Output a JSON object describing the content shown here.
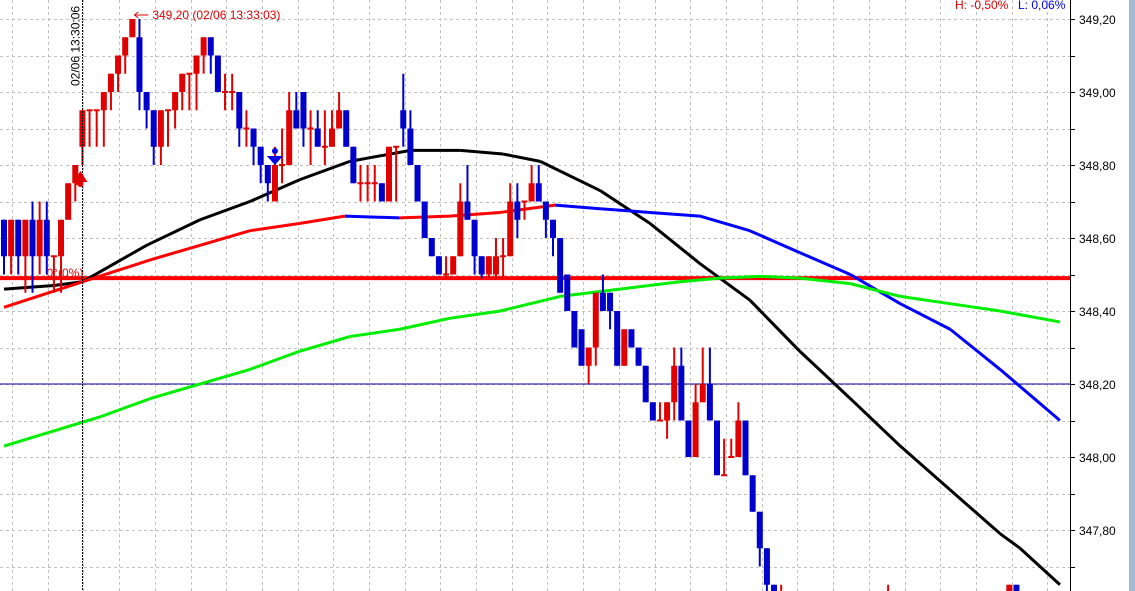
{
  "header": {
    "high_label": "H: -0,50%",
    "low_label": "L: 0,06%",
    "high_color": "#e00000",
    "low_color": "#0000e0"
  },
  "annotations": {
    "max_label": "349,20 (02/06 13:33:03)",
    "crosshair_time": "02/06 13:30:06",
    "zero_label": "0°(0%)",
    "buy_signal_icon": "red-up-arrow-icon",
    "sell_signal_icon": "blue-down-triangle-icon"
  },
  "chart_data": {
    "type": "candlestick",
    "title": "",
    "xlabel": "",
    "ylabel": "",
    "ylim": [
      347.64,
      349.25
    ],
    "grid": true,
    "y_ticks": [
      "349,20",
      "349,00",
      "348,80",
      "348,60",
      "348,40",
      "348,20",
      "348,00",
      "347,80"
    ],
    "y_tick_values": [
      349.2,
      349.0,
      348.8,
      348.6,
      348.4,
      348.2,
      348.0,
      347.8
    ],
    "up_color": "#e00000",
    "down_color": "#0000cc",
    "candles_ohlc": [
      [
        348.65,
        348.65,
        348.5,
        348.55
      ],
      [
        348.55,
        348.65,
        348.5,
        348.65
      ],
      [
        348.65,
        348.65,
        348.5,
        348.55
      ],
      [
        348.55,
        348.65,
        348.45,
        348.65
      ],
      [
        348.65,
        348.7,
        348.45,
        348.55
      ],
      [
        348.55,
        348.7,
        348.5,
        348.65
      ],
      [
        348.65,
        348.7,
        348.5,
        348.55
      ],
      [
        348.55,
        348.55,
        348.45,
        348.55
      ],
      [
        348.55,
        348.65,
        348.45,
        348.65
      ],
      [
        348.65,
        348.75,
        348.65,
        348.75
      ],
      [
        348.75,
        348.8,
        348.7,
        348.8
      ],
      [
        348.85,
        348.95,
        348.8,
        348.95
      ],
      [
        348.95,
        348.95,
        348.85,
        348.95
      ],
      [
        348.95,
        348.95,
        348.85,
        348.95
      ],
      [
        348.95,
        349.0,
        348.85,
        349.0
      ],
      [
        349.0,
        349.05,
        348.95,
        349.05
      ],
      [
        349.05,
        349.1,
        349.0,
        349.1
      ],
      [
        349.1,
        349.15,
        349.05,
        349.15
      ],
      [
        349.15,
        349.2,
        349.15,
        349.2
      ],
      [
        349.15,
        349.2,
        348.95,
        349.0
      ],
      [
        349.0,
        349.0,
        348.9,
        348.95
      ],
      [
        348.95,
        348.95,
        348.8,
        348.85
      ],
      [
        348.85,
        348.95,
        348.8,
        348.95
      ],
      [
        348.95,
        348.95,
        348.85,
        348.95
      ],
      [
        348.95,
        349.0,
        348.9,
        349.0
      ],
      [
        349.0,
        349.05,
        348.95,
        349.05
      ],
      [
        349.05,
        349.05,
        348.95,
        349.05
      ],
      [
        349.05,
        349.1,
        348.95,
        349.1
      ],
      [
        349.1,
        349.15,
        349.05,
        349.15
      ],
      [
        349.15,
        349.15,
        349.05,
        349.1
      ],
      [
        349.1,
        349.1,
        349.0,
        349.0
      ],
      [
        349.0,
        349.05,
        348.95,
        349.0
      ],
      [
        349.0,
        349.05,
        348.95,
        349.0
      ],
      [
        349.0,
        349.0,
        348.85,
        348.9
      ],
      [
        348.9,
        348.95,
        348.85,
        348.9
      ],
      [
        348.9,
        348.9,
        348.8,
        348.85
      ],
      [
        348.85,
        348.85,
        348.75,
        348.8
      ],
      [
        348.8,
        348.8,
        348.7,
        348.75
      ],
      [
        348.7,
        348.85,
        348.7,
        348.8
      ],
      [
        348.8,
        348.9,
        348.75,
        348.8
      ],
      [
        348.8,
        349.0,
        348.8,
        348.95
      ],
      [
        348.95,
        349.0,
        348.9,
        348.9
      ],
      [
        349.0,
        349.0,
        348.85,
        348.9
      ],
      [
        348.9,
        348.95,
        348.8,
        348.9
      ],
      [
        348.9,
        348.95,
        348.85,
        348.85
      ],
      [
        348.85,
        348.95,
        348.8,
        348.85
      ],
      [
        348.85,
        348.95,
        348.85,
        348.9
      ],
      [
        348.9,
        349.0,
        348.9,
        348.95
      ],
      [
        348.95,
        348.95,
        348.85,
        348.85
      ],
      [
        348.85,
        348.85,
        348.75,
        348.75
      ],
      [
        348.75,
        348.8,
        348.7,
        348.75
      ],
      [
        348.75,
        348.8,
        348.7,
        348.75
      ],
      [
        348.75,
        348.8,
        348.7,
        348.75
      ],
      [
        348.75,
        348.75,
        348.7,
        348.7
      ],
      [
        348.7,
        348.85,
        348.7,
        348.85
      ],
      [
        348.85,
        348.85,
        348.7,
        348.85
      ],
      [
        348.95,
        349.05,
        348.85,
        348.9
      ],
      [
        348.9,
        348.95,
        348.8,
        348.8
      ],
      [
        348.8,
        348.8,
        348.7,
        348.7
      ],
      [
        348.7,
        348.7,
        348.6,
        348.6
      ],
      [
        348.6,
        348.6,
        348.55,
        348.55
      ],
      [
        348.55,
        348.55,
        348.5,
        348.5
      ],
      [
        348.5,
        348.55,
        348.49,
        348.5
      ],
      [
        348.5,
        348.55,
        348.5,
        348.55
      ],
      [
        348.55,
        348.75,
        348.55,
        348.7
      ],
      [
        348.7,
        348.8,
        348.65,
        348.65
      ],
      [
        348.65,
        348.65,
        348.5,
        348.55
      ],
      [
        348.55,
        348.55,
        348.49,
        348.5
      ],
      [
        348.5,
        348.55,
        348.49,
        348.55
      ],
      [
        348.5,
        348.6,
        348.49,
        348.55
      ],
      [
        348.55,
        348.6,
        348.49,
        348.55
      ],
      [
        348.55,
        348.75,
        348.55,
        348.7
      ],
      [
        348.7,
        348.75,
        348.6,
        348.65
      ],
      [
        348.7,
        348.7,
        348.65,
        348.7
      ],
      [
        348.7,
        348.8,
        348.7,
        348.75
      ],
      [
        348.75,
        348.8,
        348.7,
        348.7
      ],
      [
        348.7,
        348.7,
        348.6,
        348.65
      ],
      [
        348.65,
        348.65,
        348.55,
        348.6
      ],
      [
        348.6,
        348.6,
        348.45,
        348.45
      ],
      [
        348.5,
        348.5,
        348.4,
        348.4
      ],
      [
        348.4,
        348.4,
        348.3,
        348.3
      ],
      [
        348.35,
        348.35,
        348.25,
        348.25
      ],
      [
        348.25,
        348.3,
        348.2,
        348.3
      ],
      [
        348.3,
        348.45,
        348.25,
        348.45
      ],
      [
        348.45,
        348.5,
        348.4,
        348.4
      ],
      [
        348.45,
        348.45,
        348.35,
        348.4
      ],
      [
        348.4,
        348.4,
        348.25,
        348.25
      ],
      [
        348.25,
        348.35,
        348.25,
        348.35
      ],
      [
        348.35,
        348.35,
        348.3,
        348.3
      ],
      [
        348.3,
        348.3,
        348.25,
        348.25
      ],
      [
        348.25,
        348.25,
        348.15,
        348.15
      ],
      [
        348.15,
        348.15,
        348.1,
        348.1
      ],
      [
        348.1,
        348.15,
        348.1,
        348.1
      ],
      [
        348.1,
        348.15,
        348.05,
        348.15
      ],
      [
        348.15,
        348.3,
        348.1,
        348.25
      ],
      [
        348.25,
        348.3,
        348.1,
        348.1
      ],
      [
        348.1,
        348.1,
        348.0,
        348.0
      ],
      [
        348.0,
        348.2,
        348.0,
        348.15
      ],
      [
        348.15,
        348.3,
        348.15,
        348.2
      ],
      [
        348.2,
        348.3,
        348.1,
        348.1
      ],
      [
        348.1,
        348.1,
        347.95,
        347.95
      ],
      [
        347.95,
        348.05,
        347.95,
        347.95
      ],
      [
        348.0,
        348.05,
        348.0,
        348.0
      ],
      [
        348.0,
        348.15,
        348.0,
        348.1
      ],
      [
        348.1,
        348.1,
        347.95,
        347.95
      ],
      [
        347.95,
        347.95,
        347.85,
        347.85
      ],
      [
        347.85,
        347.85,
        347.7,
        347.75
      ],
      [
        347.75,
        347.75,
        347.6,
        347.65
      ],
      [
        347.65,
        347.65,
        347.55,
        347.55
      ],
      [
        347.6,
        347.65,
        347.55,
        347.6
      ]
    ],
    "late_candles": [
      {
        "index": 124,
        "ohlc": [
          347.6,
          347.65,
          347.55,
          347.6
        ]
      },
      {
        "index": 141,
        "ohlc": [
          347.55,
          347.65,
          347.55,
          347.65
        ]
      },
      {
        "index": 142,
        "ohlc": [
          347.65,
          347.65,
          347.55,
          347.55
        ]
      }
    ],
    "series": [
      {
        "color": "#000000",
        "points": [
          [
            0,
            348.46
          ],
          [
            7,
            348.47
          ],
          [
            11,
            348.48
          ],
          [
            20,
            348.58
          ],
          [
            27.5,
            348.65
          ],
          [
            34.5,
            348.7
          ],
          [
            41.5,
            348.76
          ],
          [
            48.5,
            348.81
          ],
          [
            57,
            348.84
          ],
          [
            64,
            348.84
          ],
          [
            70,
            348.83
          ],
          [
            75.2,
            348.81
          ],
          [
            83.6,
            348.73
          ],
          [
            90.6,
            348.64
          ],
          [
            97.6,
            348.53
          ],
          [
            104.6,
            348.43
          ],
          [
            111.6,
            348.29
          ],
          [
            118.7,
            348.16
          ],
          [
            125.7,
            348.03
          ],
          [
            132.7,
            347.91
          ],
          [
            139.7,
            347.79
          ],
          [
            142.5,
            347.75
          ],
          [
            148.1,
            347.65
          ]
        ]
      },
      {
        "color_up": "#ff0000",
        "color_down": "#0000ff",
        "points": [
          [
            0,
            348.41
          ],
          [
            11,
            348.48
          ],
          [
            20.5,
            348.54
          ],
          [
            27.5,
            348.58
          ],
          [
            34.5,
            348.62
          ],
          [
            41.5,
            348.64
          ],
          [
            47.8,
            348.66
          ],
          [
            55.5,
            348.655
          ],
          [
            62.5,
            348.66
          ],
          [
            69.6,
            348.67
          ],
          [
            77.3,
            348.69
          ],
          [
            83.6,
            348.68
          ],
          [
            90.6,
            348.67
          ],
          [
            97.6,
            348.66
          ],
          [
            104.6,
            348.62
          ],
          [
            111.6,
            348.56
          ],
          [
            118.7,
            348.5
          ],
          [
            125.7,
            348.42
          ],
          [
            132.7,
            348.35
          ],
          [
            139.7,
            348.24
          ],
          [
            148.1,
            348.1
          ]
        ]
      },
      {
        "color": "#00ee00",
        "points": [
          [
            0,
            348.03
          ],
          [
            13.5,
            348.11
          ],
          [
            20.5,
            348.16
          ],
          [
            27.5,
            348.2
          ],
          [
            34.5,
            348.24
          ],
          [
            41.5,
            348.29
          ],
          [
            48.5,
            348.33
          ],
          [
            55.5,
            348.35
          ],
          [
            62.5,
            348.38
          ],
          [
            69.6,
            348.4
          ],
          [
            78,
            348.44
          ],
          [
            86.4,
            348.46
          ],
          [
            94.8,
            348.48
          ],
          [
            100.4,
            348.49
          ],
          [
            106,
            348.495
          ],
          [
            111.6,
            348.49
          ],
          [
            118.7,
            348.475
          ],
          [
            125.7,
            348.44
          ],
          [
            132.7,
            348.42
          ],
          [
            139.7,
            348.4
          ],
          [
            148.1,
            348.37
          ]
        ]
      }
    ],
    "horizontal_lines": [
      {
        "value": 348.49,
        "color": "#ff0000"
      },
      {
        "value": 348.2,
        "color": "#000099"
      }
    ],
    "max_point": {
      "index": 18,
      "value": 349.2
    },
    "crosshair_index": 11,
    "buy_signal_index": 11,
    "sell_signal_index": 38
  }
}
